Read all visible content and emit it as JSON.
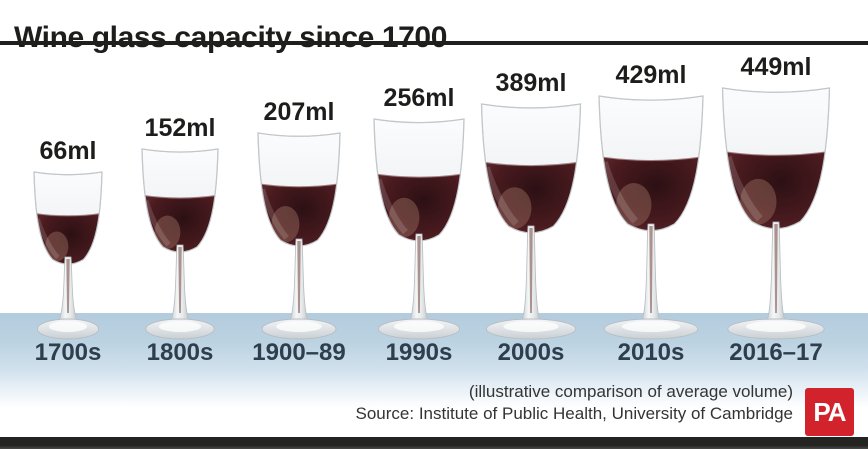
{
  "title": "Wine glass capacity since 1700",
  "glasses": [
    {
      "volume": "66ml",
      "period": "1700s"
    },
    {
      "volume": "152ml",
      "period": "1800s"
    },
    {
      "volume": "207ml",
      "period": "1900–89"
    },
    {
      "volume": "256ml",
      "period": "1990s"
    },
    {
      "volume": "389ml",
      "period": "2000s"
    },
    {
      "volume": "429ml",
      "period": "2010s"
    },
    {
      "volume": "449ml",
      "period": "2016–17"
    }
  ],
  "footer": {
    "note": "(illustrative comparison of average volume)",
    "source": "Source: Institute of Public Health, University of Cambridge",
    "logo": "PA"
  },
  "colors": {
    "accent_red": "#d2232c",
    "wine_dark": "#3a1418",
    "wine_light": "#74383a",
    "band_blue": "#b7cfdf",
    "title_text": "#1d1d1b",
    "period_text": "#2e3e4c"
  },
  "chart_data": {
    "type": "bar",
    "title": "Wine glass capacity since 1700",
    "categories": [
      "1700s",
      "1800s",
      "1900–89",
      "1990s",
      "2000s",
      "2010s",
      "2016–17"
    ],
    "values": [
      66,
      152,
      207,
      256,
      389,
      429,
      449
    ],
    "unit": "ml",
    "value_labels": [
      "66ml",
      "152ml",
      "207ml",
      "256ml",
      "389ml",
      "429ml",
      "449ml"
    ],
    "ylim": [
      0,
      449
    ],
    "note": "(illustrative comparison of average volume)",
    "source": "Source: Institute of Public Health, University of Cambridge",
    "legend_position": "none",
    "grid": false
  }
}
